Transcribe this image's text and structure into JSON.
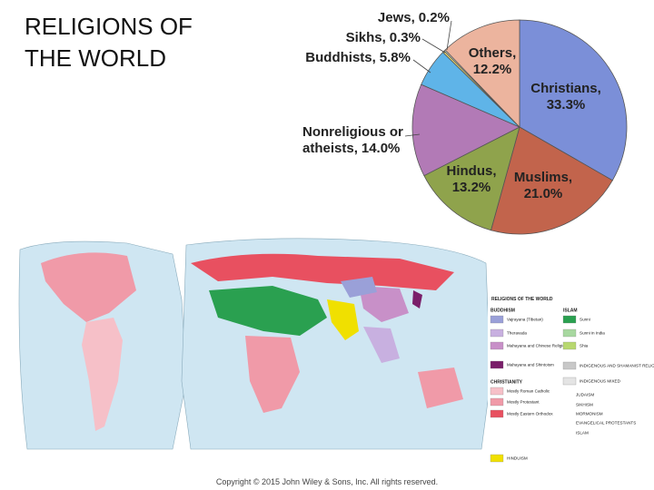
{
  "slide": {
    "title": "RELIGIONS OF THE WORLD",
    "copyright": "Copyright © 2015 John Wiley & Sons, Inc. All rights reserved."
  },
  "chart_data": {
    "type": "pie",
    "categories": [
      "Christians,",
      "Muslims,",
      "Hindus,",
      "Nonreligious or atheists,",
      "Buddhists,",
      "Sikhs,",
      "Jews,",
      "Others,"
    ],
    "values": [
      33.3,
      21.0,
      13.2,
      14.0,
      5.8,
      0.3,
      0.2,
      12.2
    ],
    "value_labels": [
      "33.3%",
      "21.0%",
      "13.2%",
      "14.0%",
      "5.8%",
      "0.3%",
      "0.2%",
      "12.2%"
    ],
    "colors": [
      "#7b8fd8",
      "#c2644c",
      "#8fa34c",
      "#b27ab6",
      "#5fb4e8",
      "#e8d870",
      "#f2ede0",
      "#ecb49e"
    ]
  },
  "map_legend": {
    "title": "RELIGIONS OF THE WORLD",
    "entries": [
      {
        "label": "BUDDHISM"
      },
      {
        "label": "Vajrayana (Tibetan)",
        "color": "#9aa0d8"
      },
      {
        "label": "Theravada",
        "color": "#c8b0e0"
      },
      {
        "label": "Mahayana and Chinese Religions",
        "color": "#c890c8"
      },
      {
        "label": "Mahayana and Shintoism",
        "color": "#7a1f6a"
      },
      {
        "label": "CHRISTIANITY"
      },
      {
        "label": "Mostly Roman Catholic",
        "color": "#f6c0c8"
      },
      {
        "label": "Mostly Protestant",
        "color": "#f09aa8"
      },
      {
        "label": "Mostly Eastern Orthodox",
        "color": "#e85060"
      },
      {
        "label": "HINDUISM",
        "color": "#f0e000"
      },
      {
        "label": "ISLAM"
      },
      {
        "label": "Sunni",
        "color": "#2aa050"
      },
      {
        "label": "Sunni in India",
        "color": "#a8d8a0"
      },
      {
        "label": "Shia",
        "color": "#b8d870"
      },
      {
        "label": "INDIGENOUS AND SHAMANIST RELIGIONS",
        "color": "#c8c8c8"
      },
      {
        "label": "INDIGENOUS MIXED",
        "color": "#e4e4e4"
      },
      {
        "label": "JUDAISM"
      },
      {
        "label": "SIKHISM"
      },
      {
        "label": "MORMONISM"
      },
      {
        "label": "EVANGELICAL PROTESTANTS"
      },
      {
        "label": "ISLAM"
      }
    ]
  }
}
